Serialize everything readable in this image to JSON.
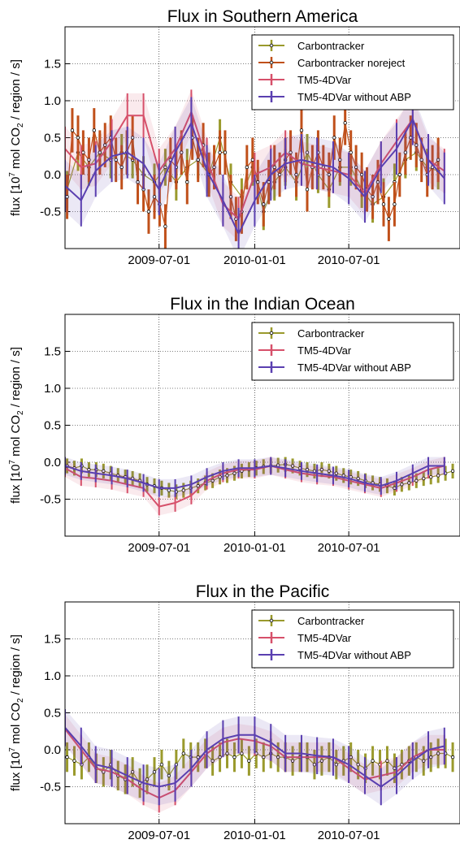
{
  "chart_data": [
    {
      "type": "line",
      "title": "Flux in Southern America",
      "ylabel": "flux [10^7 mol CO2 / region / s]",
      "ylim": [
        -1.0,
        2.0
      ],
      "yticks": [
        -0.5,
        0.0,
        0.5,
        1.0,
        1.5
      ],
      "ytick_labels": [
        "-0.5",
        "0.0",
        "0.5",
        "1.0",
        "1.5"
      ],
      "xticks": [
        "2009-07-01",
        "2010-01-01",
        "2010-07-01"
      ],
      "xlim": [
        "2009-01-01",
        "2011-01-31"
      ],
      "grid": true,
      "legend_position": "top-right",
      "series": [
        {
          "name": "Carbontracker",
          "color": "#9a9a2c",
          "style": "errorbar-dots",
          "x": [
            "2009-01-05",
            "2009-01-26",
            "2009-02-16",
            "2009-03-09",
            "2009-03-30",
            "2009-04-20",
            "2009-05-11",
            "2009-06-01",
            "2009-06-22",
            "2009-07-13",
            "2009-08-03",
            "2009-08-24",
            "2009-09-14",
            "2009-10-05",
            "2009-10-26",
            "2009-11-16",
            "2009-12-07",
            "2009-12-28",
            "2010-01-18",
            "2010-02-08",
            "2010-03-01",
            "2010-03-22",
            "2010-04-12",
            "2010-05-03",
            "2010-05-24",
            "2010-06-14",
            "2010-07-05",
            "2010-07-26",
            "2010-08-16",
            "2010-09-06",
            "2010-09-27",
            "2010-10-18",
            "2010-11-08",
            "2010-11-29",
            "2010-12-20"
          ],
          "y": [
            -0.2,
            0.3,
            0.1,
            0.3,
            0.2,
            0.3,
            0.2,
            0.0,
            -0.1,
            0.1,
            -0.1,
            0.1,
            0.2,
            0.0,
            0.5,
            -0.1,
            -0.3,
            0.1,
            -0.5,
            -0.1,
            0.1,
            -0.1,
            0.3,
            0.0,
            -0.2,
            0.1,
            0.1,
            -0.2,
            -0.4,
            -0.3,
            -0.1,
            0.2,
            0.3,
            0.1,
            0.05
          ],
          "err": 0.25
        },
        {
          "name": "Carbontracker noreject",
          "color": "#c0501a",
          "style": "errorbar-dots",
          "x": [
            "2009-01-05",
            "2009-01-15",
            "2009-01-26",
            "2009-02-05",
            "2009-02-16",
            "2009-02-26",
            "2009-03-09",
            "2009-03-19",
            "2009-03-30",
            "2009-04-09",
            "2009-04-20",
            "2009-04-30",
            "2009-05-11",
            "2009-05-21",
            "2009-06-01",
            "2009-06-11",
            "2009-06-22",
            "2009-07-02",
            "2009-07-13",
            "2009-07-23",
            "2009-08-03",
            "2009-08-13",
            "2009-08-24",
            "2009-09-03",
            "2009-09-14",
            "2009-09-24",
            "2009-10-05",
            "2009-10-15",
            "2009-10-26",
            "2009-11-05",
            "2009-11-16",
            "2009-11-26",
            "2009-12-07",
            "2009-12-17",
            "2009-12-28",
            "2010-01-07",
            "2010-01-18",
            "2010-01-28",
            "2010-02-08",
            "2010-02-18",
            "2010-03-01",
            "2010-03-11",
            "2010-03-22",
            "2010-04-01",
            "2010-04-12",
            "2010-04-22",
            "2010-05-03",
            "2010-05-13",
            "2010-05-24",
            "2010-06-03",
            "2010-06-14",
            "2010-06-24",
            "2010-07-05",
            "2010-07-15",
            "2010-07-26",
            "2010-08-05",
            "2010-08-16",
            "2010-08-26",
            "2010-09-06",
            "2010-09-16",
            "2010-09-27",
            "2010-10-07",
            "2010-10-18",
            "2010-10-28",
            "2010-11-08",
            "2010-11-18",
            "2010-11-29",
            "2010-12-09",
            "2010-12-20"
          ],
          "y": [
            -0.3,
            0.6,
            0.5,
            0.3,
            0.2,
            0.6,
            0.3,
            0.4,
            0.5,
            0.2,
            0.1,
            0.3,
            0.5,
            -0.1,
            -0.2,
            -0.5,
            -0.3,
            -0.4,
            -0.7,
            0.2,
            0.1,
            0.3,
            -0.1,
            0.5,
            0.2,
            0.4,
            0.0,
            0.1,
            0.3,
            0.3,
            -0.3,
            -0.6,
            -0.5,
            0.1,
            0.2,
            -0.1,
            -0.4,
            -0.1,
            0.1,
            0.0,
            0.2,
            0.3,
            0.0,
            0.6,
            -0.2,
            0.1,
            0.3,
            0.1,
            0.0,
            0.5,
            0.2,
            0.7,
            0.3,
            0.1,
            0.0,
            -0.2,
            -0.3,
            -0.1,
            -0.4,
            -0.6,
            -0.4,
            0.0,
            0.3,
            0.5,
            0.4,
            0.2,
            0.0,
            0.1,
            0.2
          ],
          "err": 0.3
        },
        {
          "name": "TM5-4DVar",
          "color": "#d6506a",
          "style": "line-errorbar-band",
          "x": [
            "2009-01-01",
            "2009-02-01",
            "2009-03-01",
            "2009-04-01",
            "2009-05-01",
            "2009-06-01",
            "2009-07-01",
            "2009-08-01",
            "2009-09-01",
            "2009-10-01",
            "2009-11-01",
            "2009-12-01",
            "2010-01-01",
            "2010-02-01",
            "2010-03-01",
            "2010-04-01",
            "2010-05-01",
            "2010-06-01",
            "2010-07-01",
            "2010-08-01",
            "2010-09-01",
            "2010-10-01",
            "2010-11-01",
            "2010-12-01",
            "2011-01-01"
          ],
          "y": [
            0.35,
            0.1,
            0.15,
            0.45,
            0.8,
            0.8,
            0.05,
            0.35,
            0.85,
            0.2,
            -0.4,
            -0.6,
            0.0,
            0.1,
            0.3,
            0.15,
            0.1,
            0.05,
            0.0,
            -0.25,
            0.15,
            0.45,
            0.75,
            0.2,
            0.05
          ],
          "err": 0.3
        },
        {
          "name": "TM5-4DVar without ABP",
          "color": "#5a3fb0",
          "style": "line-errorbar-band",
          "x": [
            "2009-01-01",
            "2009-02-01",
            "2009-03-01",
            "2009-04-01",
            "2009-05-01",
            "2009-06-01",
            "2009-07-01",
            "2009-08-01",
            "2009-09-01",
            "2009-10-01",
            "2009-11-01",
            "2009-12-01",
            "2010-01-01",
            "2010-02-01",
            "2010-03-01",
            "2010-04-01",
            "2010-05-01",
            "2010-06-01",
            "2010-07-01",
            "2010-08-01",
            "2010-09-01",
            "2010-10-01",
            "2010-11-01",
            "2010-12-01",
            "2011-01-01"
          ],
          "y": [
            -0.15,
            -0.35,
            0.05,
            0.25,
            0.3,
            0.15,
            -0.2,
            0.3,
            0.7,
            0.05,
            -0.35,
            -0.8,
            -0.35,
            0.0,
            0.15,
            0.2,
            0.15,
            0.1,
            -0.05,
            -0.3,
            0.1,
            0.35,
            0.75,
            0.2,
            -0.05
          ],
          "err": 0.35
        }
      ]
    },
    {
      "type": "line",
      "title": "Flux in the Indian Ocean",
      "ylabel": "flux [10^7 mol CO2 / region / s]",
      "ylim": [
        -1.0,
        2.0
      ],
      "yticks": [
        -0.5,
        0.0,
        0.5,
        1.0,
        1.5
      ],
      "ytick_labels": [
        "-0.5",
        "0.0",
        "0.5",
        "1.0",
        "1.5"
      ],
      "xticks": [
        "2009-07-01",
        "2010-01-01",
        "2010-07-01"
      ],
      "xlim": [
        "2009-01-01",
        "2011-01-31"
      ],
      "grid": true,
      "legend_position": "top-right",
      "series": [
        {
          "name": "Carbontracker",
          "color": "#9a9a2c",
          "style": "errorbar-dots",
          "x": [
            "2009-01-05",
            "2009-01-19",
            "2009-02-02",
            "2009-02-16",
            "2009-03-02",
            "2009-03-16",
            "2009-03-30",
            "2009-04-13",
            "2009-04-27",
            "2009-05-11",
            "2009-05-25",
            "2009-06-08",
            "2009-06-22",
            "2009-07-06",
            "2009-07-20",
            "2009-08-03",
            "2009-08-17",
            "2009-08-31",
            "2009-09-14",
            "2009-09-28",
            "2009-10-12",
            "2009-10-26",
            "2009-11-09",
            "2009-11-23",
            "2009-12-07",
            "2009-12-21",
            "2010-01-04",
            "2010-01-18",
            "2010-02-01",
            "2010-02-15",
            "2010-03-01",
            "2010-03-15",
            "2010-03-29",
            "2010-04-12",
            "2010-04-26",
            "2010-05-10",
            "2010-05-24",
            "2010-06-07",
            "2010-06-21",
            "2010-07-05",
            "2010-07-19",
            "2010-08-02",
            "2010-08-16",
            "2010-08-30",
            "2010-09-13",
            "2010-09-27",
            "2010-10-11",
            "2010-10-25",
            "2010-11-08",
            "2010-11-22",
            "2010-12-06",
            "2010-12-20",
            "2011-01-03",
            "2011-01-17"
          ],
          "y": [
            -0.05,
            -0.08,
            -0.05,
            -0.1,
            -0.1,
            -0.12,
            -0.15,
            -0.18,
            -0.2,
            -0.22,
            -0.25,
            -0.3,
            -0.32,
            -0.35,
            -0.38,
            -0.4,
            -0.38,
            -0.35,
            -0.32,
            -0.28,
            -0.25,
            -0.2,
            -0.18,
            -0.15,
            -0.12,
            -0.1,
            -0.08,
            -0.06,
            -0.05,
            -0.04,
            -0.03,
            -0.05,
            -0.08,
            -0.1,
            -0.12,
            -0.1,
            -0.12,
            -0.15,
            -0.18,
            -0.2,
            -0.22,
            -0.25,
            -0.28,
            -0.3,
            -0.32,
            -0.35,
            -0.3,
            -0.28,
            -0.25,
            -0.22,
            -0.2,
            -0.18,
            -0.15,
            -0.12
          ],
          "err": 0.1
        },
        {
          "name": "TM5-4DVar",
          "color": "#d6506a",
          "style": "line-errorbar-band",
          "x": [
            "2009-01-01",
            "2009-02-01",
            "2009-03-01",
            "2009-04-01",
            "2009-05-01",
            "2009-06-01",
            "2009-07-01",
            "2009-08-01",
            "2009-09-01",
            "2009-10-01",
            "2009-11-01",
            "2009-12-01",
            "2010-01-01",
            "2010-02-01",
            "2010-03-01",
            "2010-04-01",
            "2010-05-01",
            "2010-06-01",
            "2010-07-01",
            "2010-08-01",
            "2010-09-01",
            "2010-10-01",
            "2010-11-01",
            "2010-12-01",
            "2011-01-01"
          ],
          "y": [
            -0.08,
            -0.2,
            -0.22,
            -0.25,
            -0.3,
            -0.35,
            -0.6,
            -0.55,
            -0.45,
            -0.25,
            -0.15,
            -0.1,
            -0.1,
            -0.05,
            -0.1,
            -0.15,
            -0.18,
            -0.2,
            -0.25,
            -0.3,
            -0.35,
            -0.28,
            -0.2,
            -0.1,
            -0.05
          ],
          "err": 0.12
        },
        {
          "name": "TM5-4DVar without ABP",
          "color": "#5a3fb0",
          "style": "line-errorbar-band",
          "x": [
            "2009-01-01",
            "2009-02-01",
            "2009-03-01",
            "2009-04-01",
            "2009-05-01",
            "2009-06-01",
            "2009-07-01",
            "2009-08-01",
            "2009-09-01",
            "2009-10-01",
            "2009-11-01",
            "2009-12-01",
            "2010-01-01",
            "2010-02-01",
            "2010-03-01",
            "2010-04-01",
            "2010-05-01",
            "2010-06-01",
            "2010-07-01",
            "2010-08-01",
            "2010-09-01",
            "2010-10-01",
            "2010-11-01",
            "2010-12-01",
            "2011-01-01"
          ],
          "y": [
            -0.05,
            -0.12,
            -0.15,
            -0.18,
            -0.22,
            -0.28,
            -0.35,
            -0.35,
            -0.3,
            -0.2,
            -0.12,
            -0.08,
            -0.08,
            -0.05,
            -0.08,
            -0.12,
            -0.15,
            -0.18,
            -0.22,
            -0.28,
            -0.32,
            -0.25,
            -0.15,
            -0.05,
            -0.05
          ],
          "err": 0.12
        }
      ]
    },
    {
      "type": "line",
      "title": "Flux in the Pacific",
      "ylabel": "flux [10^7 mol CO2 / region / s]",
      "ylim": [
        -1.0,
        2.0
      ],
      "yticks": [
        -0.5,
        0.0,
        0.5,
        1.0,
        1.5
      ],
      "ytick_labels": [
        "-0.5",
        "0.0",
        "0.5",
        "1.0",
        "1.5"
      ],
      "xticks": [
        "2009-07-01",
        "2010-01-01",
        "2010-07-01"
      ],
      "xlim": [
        "2009-01-01",
        "2011-01-31"
      ],
      "grid": true,
      "legend_position": "top-right",
      "series": [
        {
          "name": "Carbontracker",
          "color": "#9a9a2c",
          "style": "errorbar-dots",
          "x": [
            "2009-01-05",
            "2009-01-19",
            "2009-02-02",
            "2009-02-16",
            "2009-03-02",
            "2009-03-16",
            "2009-03-30",
            "2009-04-13",
            "2009-04-27",
            "2009-05-11",
            "2009-05-25",
            "2009-06-08",
            "2009-06-22",
            "2009-07-06",
            "2009-07-20",
            "2009-08-03",
            "2009-08-17",
            "2009-08-31",
            "2009-09-14",
            "2009-09-28",
            "2009-10-12",
            "2009-10-26",
            "2009-11-09",
            "2009-11-23",
            "2009-12-07",
            "2009-12-21",
            "2010-01-04",
            "2010-01-18",
            "2010-02-01",
            "2010-02-15",
            "2010-03-01",
            "2010-03-15",
            "2010-03-29",
            "2010-04-12",
            "2010-04-26",
            "2010-05-10",
            "2010-05-24",
            "2010-06-07",
            "2010-06-21",
            "2010-07-05",
            "2010-07-19",
            "2010-08-02",
            "2010-08-16",
            "2010-08-30",
            "2010-09-13",
            "2010-09-27",
            "2010-10-11",
            "2010-10-25",
            "2010-11-08",
            "2010-11-22",
            "2010-12-06",
            "2010-12-20",
            "2011-01-03",
            "2011-01-17"
          ],
          "y": [
            -0.1,
            -0.15,
            -0.2,
            -0.1,
            -0.25,
            -0.3,
            -0.2,
            -0.35,
            -0.4,
            -0.3,
            -0.45,
            -0.4,
            -0.3,
            -0.2,
            -0.35,
            -0.2,
            -0.05,
            -0.1,
            -0.1,
            -0.05,
            -0.15,
            -0.1,
            -0.05,
            -0.1,
            -0.05,
            -0.15,
            -0.05,
            -0.1,
            -0.05,
            -0.1,
            -0.1,
            -0.15,
            -0.1,
            -0.1,
            -0.2,
            -0.15,
            -0.1,
            -0.2,
            -0.15,
            -0.1,
            -0.2,
            -0.25,
            -0.15,
            -0.2,
            -0.15,
            -0.25,
            -0.2,
            -0.15,
            -0.1,
            -0.15,
            -0.1,
            -0.05,
            -0.05,
            -0.1
          ],
          "err": 0.2
        },
        {
          "name": "TM5-4DVar",
          "color": "#d6506a",
          "style": "line-errorbar-band",
          "x": [
            "2009-01-01",
            "2009-02-01",
            "2009-03-01",
            "2009-04-01",
            "2009-05-01",
            "2009-06-01",
            "2009-07-01",
            "2009-08-01",
            "2009-09-01",
            "2009-10-01",
            "2009-11-01",
            "2009-12-01",
            "2010-01-01",
            "2010-02-01",
            "2010-03-01",
            "2010-04-01",
            "2010-05-01",
            "2010-06-01",
            "2010-07-01",
            "2010-08-01",
            "2010-09-01",
            "2010-10-01",
            "2010-11-01",
            "2010-12-01",
            "2011-01-01"
          ],
          "y": [
            0.28,
            0.0,
            -0.25,
            -0.3,
            -0.4,
            -0.55,
            -0.65,
            -0.55,
            -0.3,
            -0.05,
            0.1,
            0.15,
            0.12,
            0.05,
            -0.1,
            -0.1,
            -0.1,
            -0.1,
            -0.25,
            -0.4,
            -0.35,
            -0.3,
            -0.1,
            0.0,
            0.0
          ],
          "err": 0.2
        },
        {
          "name": "TM5-4DVar without ABP",
          "color": "#5a3fb0",
          "style": "line-errorbar-band",
          "x": [
            "2009-01-01",
            "2009-02-01",
            "2009-03-01",
            "2009-04-01",
            "2009-05-01",
            "2009-06-01",
            "2009-07-01",
            "2009-08-01",
            "2009-09-01",
            "2009-10-01",
            "2009-11-01",
            "2009-12-01",
            "2010-01-01",
            "2010-02-01",
            "2010-03-01",
            "2010-04-01",
            "2010-05-01",
            "2010-06-01",
            "2010-07-01",
            "2010-08-01",
            "2010-09-01",
            "2010-10-01",
            "2010-11-01",
            "2010-12-01",
            "2011-01-01"
          ],
          "y": [
            0.3,
            0.05,
            -0.2,
            -0.25,
            -0.35,
            -0.45,
            -0.5,
            -0.45,
            -0.25,
            0.0,
            0.15,
            0.2,
            0.2,
            0.1,
            -0.05,
            -0.05,
            -0.08,
            -0.1,
            -0.2,
            -0.35,
            -0.5,
            -0.35,
            -0.15,
            0.0,
            0.05
          ],
          "err": 0.25
        }
      ]
    }
  ]
}
